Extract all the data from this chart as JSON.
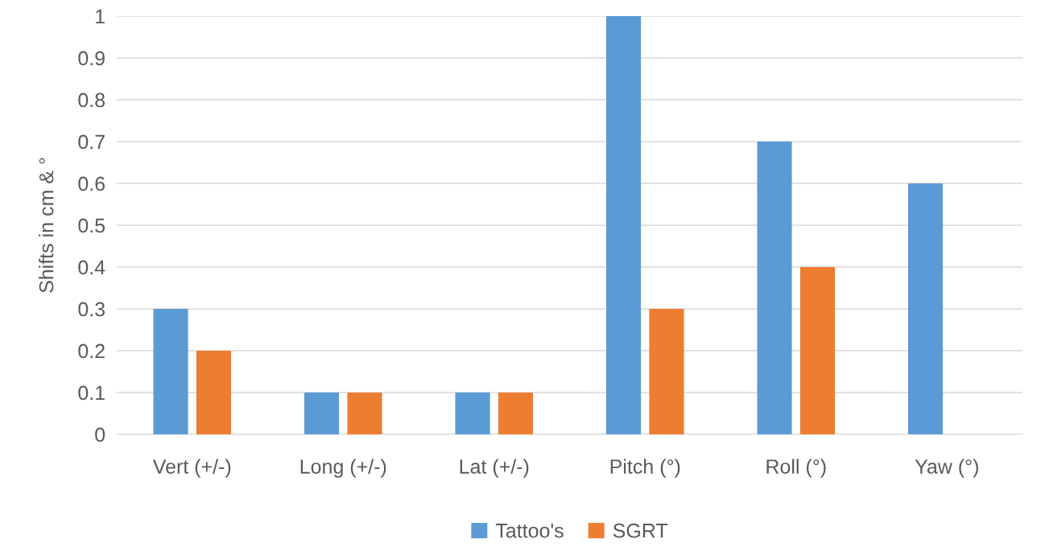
{
  "chart_data": {
    "type": "bar",
    "ylabel": "Shifts in cm & °",
    "categories": [
      "Vert (+/-)",
      "Long (+/-)",
      "Lat (+/-)",
      "Pitch (°)",
      "Roll (°)",
      "Yaw (°)"
    ],
    "series": [
      {
        "name": "Tattoo's",
        "color": "#5b9bd5",
        "values": [
          0.3,
          0.1,
          0.1,
          1,
          0.7,
          0.6
        ]
      },
      {
        "name": "SGRT",
        "color": "#ed7d31",
        "values": [
          0.2,
          0.1,
          0.1,
          0.3,
          0.4,
          0
        ]
      }
    ],
    "ylim": [
      0,
      1
    ],
    "yticks": [
      0,
      0.1,
      0.2,
      0.3,
      0.4,
      0.5,
      0.6,
      0.7,
      0.8,
      0.9,
      1
    ],
    "grid": "y",
    "legend": "bottom"
  }
}
